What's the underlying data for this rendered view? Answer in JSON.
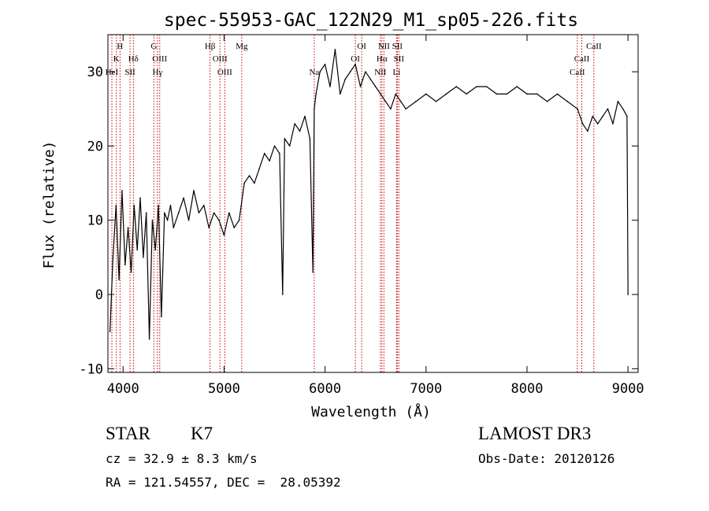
{
  "chart_data": {
    "type": "line",
    "title": "spec-55953-GAC_122N29_M1_sp05-226.fits",
    "xlabel": "Wavelength (Å)",
    "ylabel": "Flux (relative)",
    "xlim": [
      3850,
      9100
    ],
    "ylim": [
      -10.5,
      35
    ],
    "x_ticks": [
      4000,
      5000,
      6000,
      7000,
      8000,
      9000
    ],
    "y_ticks": [
      -10,
      0,
      10,
      20,
      30
    ],
    "grid": false,
    "line_color": "#000000",
    "marker_color": "#cc0000",
    "series": [
      {
        "x": [
          3870,
          3900,
          3930,
          3960,
          3990,
          4020,
          4050,
          4080,
          4110,
          4140,
          4170,
          4200,
          4230,
          4260,
          4290,
          4320,
          4350,
          4380,
          4410,
          4440,
          4470,
          4500,
          4550,
          4600,
          4650,
          4700,
          4750,
          4800,
          4850,
          4900,
          4950,
          5000,
          5050,
          5100,
          5150,
          5200,
          5250,
          5300,
          5350,
          5400,
          5450,
          5500,
          5550,
          5580,
          5600,
          5650,
          5700,
          5750,
          5800,
          5850,
          5880,
          5893,
          5910,
          5950,
          6000,
          6050,
          6100,
          6150,
          6200,
          6250,
          6300,
          6350,
          6400,
          6450,
          6500,
          6550,
          6600,
          6650,
          6700,
          6750,
          6800,
          6900,
          7000,
          7100,
          7200,
          7300,
          7400,
          7500,
          7600,
          7700,
          7800,
          7900,
          8000,
          8100,
          8200,
          8300,
          8400,
          8500,
          8550,
          8600,
          8650,
          8700,
          8750,
          8800,
          8850,
          8900,
          8950,
          8990,
          9000
        ],
        "values": [
          -5,
          5,
          12,
          2,
          14,
          4,
          9,
          3,
          12,
          6,
          13,
          5,
          11,
          -6,
          10,
          6,
          12,
          -3,
          11,
          10,
          12,
          9,
          11,
          13,
          10,
          14,
          11,
          12,
          9,
          11,
          10,
          8,
          11,
          9,
          10,
          15,
          16,
          15,
          17,
          19,
          18,
          20,
          19,
          0,
          21,
          20,
          23,
          22,
          24,
          21,
          3,
          25,
          27,
          30,
          31,
          28,
          33,
          27,
          29,
          30,
          31,
          28,
          30,
          29,
          28,
          27,
          26,
          25,
          27,
          26,
          25,
          26,
          27,
          26,
          27,
          28,
          27,
          28,
          28,
          27,
          27,
          28,
          27,
          27,
          26,
          27,
          26,
          25,
          23,
          22,
          24,
          23,
          24,
          25,
          23,
          26,
          25,
          24,
          0
        ]
      }
    ],
    "line_markers": [
      {
        "label": "H",
        "x": 3970,
        "row": 1
      },
      {
        "label": "K",
        "x": 3934,
        "row": 2
      },
      {
        "label": "HeI",
        "x": 3889,
        "row": 3
      },
      {
        "label": "SII",
        "x": 4069,
        "row": 3
      },
      {
        "label": "Hδ",
        "x": 4102,
        "row": 2
      },
      {
        "label": "G",
        "x": 4305,
        "row": 1
      },
      {
        "label": "OIII",
        "x": 4363,
        "row": 2
      },
      {
        "label": "Hγ",
        "x": 4341,
        "row": 3
      },
      {
        "label": "Hβ",
        "x": 4861,
        "row": 1
      },
      {
        "label": "OIII",
        "x": 4959,
        "row": 2
      },
      {
        "label": "OIII",
        "x": 5007,
        "row": 3
      },
      {
        "label": "Mg",
        "x": 5175,
        "row": 1
      },
      {
        "label": "Na",
        "x": 5893,
        "row": 3
      },
      {
        "label": "OI",
        "x": 6363,
        "row": 1
      },
      {
        "label": "OI",
        "x": 6300,
        "row": 2
      },
      {
        "label": "NII",
        "x": 6583,
        "row": 1
      },
      {
        "label": "Hα",
        "x": 6563,
        "row": 2
      },
      {
        "label": "NII",
        "x": 6548,
        "row": 3
      },
      {
        "label": "SII",
        "x": 6716,
        "row": 1
      },
      {
        "label": "SII",
        "x": 6731,
        "row": 2
      },
      {
        "label": "Li",
        "x": 6708,
        "row": 3
      },
      {
        "label": "CaII",
        "x": 8662,
        "row": 1
      },
      {
        "label": "CaII",
        "x": 8542,
        "row": 2
      },
      {
        "label": "CaII",
        "x": 8498,
        "row": 3
      }
    ]
  },
  "info": {
    "object_class": "STAR",
    "subclass": "K7",
    "survey": "LAMOST DR3",
    "cz": "cz = 32.9 ± 8.3 km/s",
    "obs_date": "Obs-Date: 20120126",
    "coords": "RA = 121.54557, DEC =  28.05392"
  }
}
